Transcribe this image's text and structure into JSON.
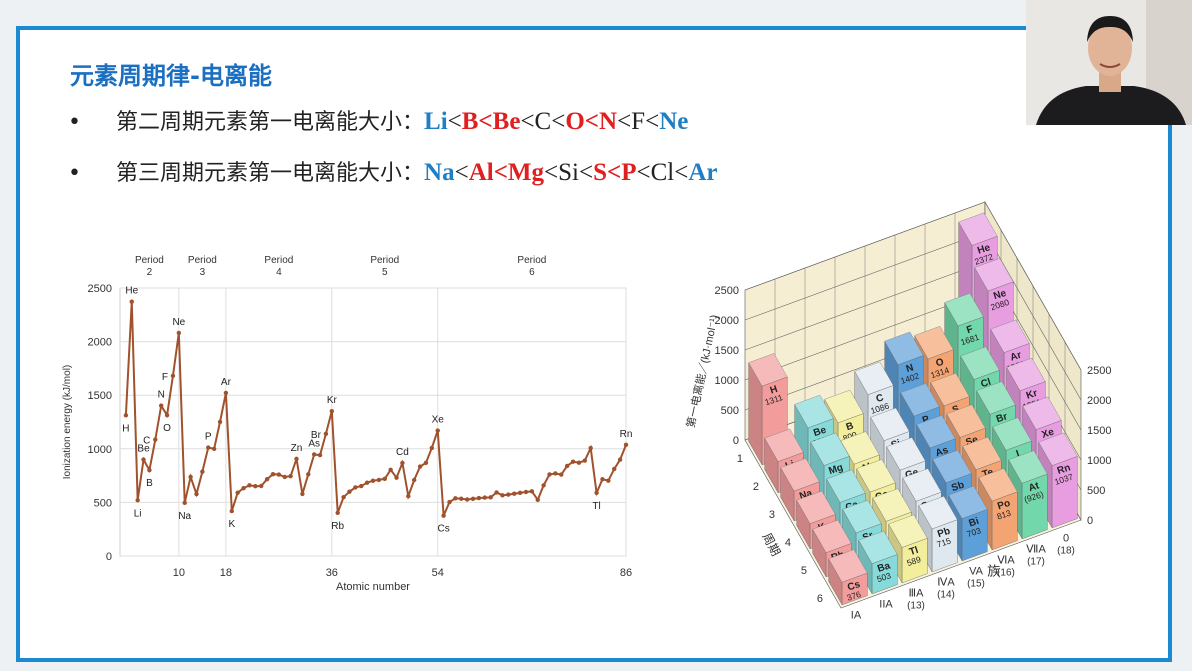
{
  "header": {
    "title": "元素周期律-电离能"
  },
  "bullets": [
    {
      "segments": [
        {
          "text": "第二周期元素第一电离能大小：",
          "color": "#222222"
        },
        {
          "text": "Li",
          "color": "#1f7fc4",
          "bold": true,
          "font": "serif"
        },
        {
          "text": "<",
          "color": "#222222",
          "font": "serif"
        },
        {
          "text": "B<Be",
          "color": "#e02020",
          "bold": true,
          "font": "serif"
        },
        {
          "text": "<C<",
          "color": "#222222",
          "font": "serif"
        },
        {
          "text": "O<N",
          "color": "#e02020",
          "bold": true,
          "font": "serif"
        },
        {
          "text": "<F<",
          "color": "#222222",
          "font": "serif"
        },
        {
          "text": "Ne",
          "color": "#1f7fc4",
          "bold": true,
          "font": "serif"
        }
      ]
    },
    {
      "segments": [
        {
          "text": "第三周期元素第一电离能大小：",
          "color": "#222222"
        },
        {
          "text": "Na",
          "color": "#1f7fc4",
          "bold": true,
          "font": "serif"
        },
        {
          "text": "<",
          "color": "#222222",
          "font": "serif"
        },
        {
          "text": "Al<Mg",
          "color": "#e02020",
          "bold": true,
          "font": "serif"
        },
        {
          "text": "<Si<",
          "color": "#222222",
          "font": "serif"
        },
        {
          "text": "S<P",
          "color": "#e02020",
          "bold": true,
          "font": "serif"
        },
        {
          "text": "<Cl<",
          "color": "#222222",
          "font": "serif"
        },
        {
          "text": "Ar",
          "color": "#1f7fc4",
          "bold": true,
          "font": "serif"
        }
      ]
    }
  ],
  "chart_data": [
    {
      "type": "line",
      "x": [
        1,
        2,
        3,
        4,
        5,
        6,
        7,
        8,
        9,
        10,
        11,
        12,
        13,
        14,
        15,
        16,
        17,
        18,
        19,
        20,
        21,
        22,
        23,
        24,
        25,
        26,
        27,
        28,
        29,
        30,
        31,
        32,
        33,
        34,
        35,
        36,
        37,
        38,
        39,
        40,
        41,
        42,
        43,
        44,
        45,
        46,
        47,
        48,
        49,
        50,
        51,
        52,
        53,
        54,
        55,
        56,
        57,
        58,
        59,
        60,
        61,
        62,
        63,
        64,
        65,
        66,
        67,
        68,
        69,
        70,
        71,
        72,
        73,
        74,
        75,
        76,
        77,
        78,
        79,
        80,
        81,
        82,
        83,
        84,
        85,
        86
      ],
      "values": [
        1312,
        2372,
        520,
        899,
        801,
        1086,
        1402,
        1314,
        1681,
        2081,
        496,
        738,
        578,
        787,
        1012,
        1000,
        1251,
        1521,
        419,
        590,
        633,
        659,
        651,
        653,
        717,
        763,
        760,
        737,
        745,
        906,
        579,
        762,
        947,
        941,
        1140,
        1351,
        403,
        549,
        600,
        640,
        652,
        684,
        702,
        710,
        720,
        804,
        731,
        868,
        558,
        709,
        834,
        869,
        1008,
        1170,
        376,
        503,
        538,
        534,
        527,
        533,
        540,
        545,
        547,
        593,
        566,
        573,
        581,
        589,
        597,
        603,
        524,
        659,
        761,
        770,
        760,
        840,
        880,
        870,
        890,
        1007,
        589,
        716,
        703,
        812,
        899,
        1037
      ],
      "point_labels": [
        "H",
        "He",
        "Li",
        "Be",
        "B",
        "C",
        "N",
        "O",
        "F",
        "Ne",
        "Na",
        null,
        null,
        null,
        "P",
        null,
        null,
        "Ar",
        "K",
        null,
        null,
        null,
        null,
        null,
        null,
        null,
        null,
        null,
        null,
        "Zn",
        null,
        null,
        "As",
        null,
        "Br",
        "Kr",
        "Rb",
        null,
        null,
        null,
        null,
        null,
        null,
        null,
        null,
        null,
        null,
        "Cd",
        null,
        null,
        null,
        null,
        null,
        "Xe",
        "Cs",
        null,
        null,
        null,
        null,
        null,
        null,
        null,
        null,
        null,
        null,
        null,
        null,
        null,
        null,
        null,
        null,
        null,
        null,
        null,
        null,
        null,
        null,
        null,
        null,
        null,
        "Tl",
        null,
        null,
        null,
        null,
        "Rn"
      ],
      "color": "#a0522d",
      "xlim": [
        0,
        86
      ],
      "ylim": [
        0,
        2500
      ],
      "xticks": [
        10,
        18,
        36,
        54,
        86
      ],
      "yticks": [
        0,
        500,
        1000,
        1500,
        2000,
        2500
      ],
      "x_label": "Atomic number",
      "y_label": "Ionization energy (kJ/mol)",
      "periods": [
        [
          "Period",
          "2"
        ],
        [
          "Period",
          "3"
        ],
        [
          "Period",
          "4"
        ],
        [
          "Period",
          "5"
        ],
        [
          "Period",
          "6"
        ]
      ],
      "grid": true
    },
    {
      "type": "bar3d",
      "categories": [
        "1",
        "2",
        "3",
        "4",
        "5",
        "6"
      ],
      "ylim": [
        0,
        2500
      ],
      "yticks": [
        0,
        500,
        1000,
        1500,
        2000,
        2500
      ],
      "y_label": "第一电离能／(kJ·mol⁻¹)",
      "x_label": "族",
      "period_label": "周期",
      "series": [
        {
          "name": "IA",
          "color": "#f39c9c",
          "values": [
            1311,
            520,
            496,
            419,
            403,
            376
          ],
          "elements": [
            "H",
            "Li",
            "Na",
            "K",
            "Rb",
            "Cs"
          ]
        },
        {
          "name": "IIA",
          "color": "#86dada",
          "values": [
            null,
            899,
            738,
            590,
            549,
            503
          ],
          "elements": [
            null,
            "Be",
            "Mg",
            "Ca",
            "Sr",
            "Ba"
          ]
        },
        {
          "name": "ⅢA",
          "number": "(13)",
          "color": "#f2ee9c",
          "values": [
            null,
            800,
            577,
            579,
            558,
            589
          ],
          "elements": [
            null,
            "B",
            "Al",
            "Ga",
            "In",
            "Tl"
          ]
        },
        {
          "name": "ⅣA",
          "number": "(14)",
          "color": "#dfe7ef",
          "values": [
            null,
            1086,
            786,
            761,
            708,
            715
          ],
          "elements": [
            null,
            "C",
            "Si",
            "Ge",
            "Sn",
            "Pb"
          ]
        },
        {
          "name": "VA",
          "number": "(15)",
          "color": "#5d9fd8",
          "values": [
            null,
            1402,
            1012,
            947,
            834,
            703
          ],
          "elements": [
            null,
            "N",
            "P",
            "As",
            "Sb",
            "Bi"
          ]
        },
        {
          "name": "ⅥA",
          "number": "(16)",
          "color": "#f4a472",
          "values": [
            null,
            1314,
            999,
            941,
            869,
            813
          ],
          "elements": [
            null,
            "O",
            "S",
            "Se",
            "Te",
            "Po"
          ]
        },
        {
          "name": "ⅦA",
          "number": "(17)",
          "color": "#72d7aa",
          "values": [
            null,
            1681,
            1256,
            1143,
            1009,
            926
          ],
          "value_labels": [
            null,
            null,
            null,
            null,
            null,
            "(926)"
          ],
          "elements": [
            null,
            "F",
            "Cl",
            "Br",
            "I",
            "At"
          ]
        },
        {
          "name": "0",
          "number": "(18)",
          "color": "#e79de0",
          "values": [
            2372,
            2080,
            1520,
            1351,
            1170,
            1037
          ],
          "elements": [
            "He",
            "Ne",
            "Ar",
            "Kr",
            "Xe",
            "Rn"
          ]
        }
      ]
    }
  ]
}
